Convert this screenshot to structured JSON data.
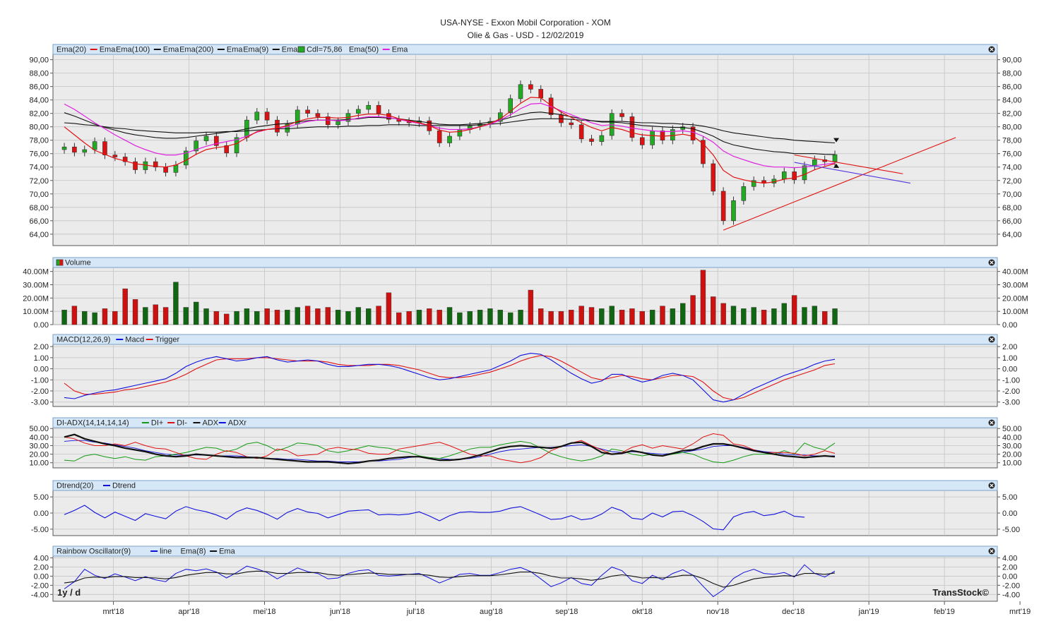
{
  "header": {
    "title": "USA-NYSE - Exxon Mobil Corporation - XOM",
    "subtitle": "Olie & Gas - USD - 12/02/2019"
  },
  "footer": {
    "period": "1y / d",
    "brand": "TransStock©"
  },
  "x_axis": {
    "labels": [
      "mrt'18",
      "apr'18",
      "mei'18",
      "jun'18",
      "jul'18",
      "aug'18",
      "sep'18",
      "okt'18",
      "nov'18",
      "dec'18",
      "jan'19",
      "feb'19",
      "mrt'19"
    ]
  },
  "colors": {
    "up": "#22aa22",
    "down": "#dd1111",
    "ema20": "#e01010",
    "ema100": "#111111",
    "ema200": "#111111",
    "ema9": "#111111",
    "ema50": "#e020e0",
    "macd": "#1010dd",
    "trigger": "#e01010",
    "di_plus": "#119911",
    "di_minus": "#e01010",
    "adx": "#111111",
    "adxr": "#1010dd",
    "panel_header": "#d6e8f8",
    "panel_bg": "#ebebeb"
  },
  "panels": [
    {
      "id": "price",
      "legend": [
        {
          "text": "Ema(20)",
          "color": ""
        },
        {
          "text": "Ema",
          "color": "#e01010"
        },
        {
          "text": "Ema(100)",
          "color": ""
        },
        {
          "text": "Ema",
          "color": "#111111"
        },
        {
          "text": "Ema(200)",
          "color": ""
        },
        {
          "text": "Ema",
          "color": "#111111"
        },
        {
          "text": "Ema(9)",
          "color": ""
        },
        {
          "text": "Ema",
          "color": "#111111"
        },
        {
          "text": "Cdl=75,86",
          "color": ""
        },
        {
          "text": "Ema(50)",
          "color": ""
        },
        {
          "text": "Ema",
          "color": "#e020e0"
        }
      ],
      "ticks": [
        "90,00",
        "88,00",
        "86,00",
        "84,00",
        "82,00",
        "80,00",
        "78,00",
        "76,00",
        "74,00",
        "72,00",
        "70,00",
        "68,00",
        "66,00",
        "64,00"
      ]
    },
    {
      "id": "volume",
      "legend": [
        {
          "text": "Volume",
          "color": ""
        }
      ],
      "ticks": [
        "40.00M",
        "30.00M",
        "20.00M",
        "10.00M",
        "0.00"
      ]
    },
    {
      "id": "macd",
      "legend": [
        {
          "text": "MACD(12,26,9)",
          "color": ""
        },
        {
          "text": "Macd",
          "color": "#1010dd"
        },
        {
          "text": "Trigger",
          "color": "#e01010"
        }
      ],
      "ticks": [
        "2.00",
        "1.00",
        "0.00",
        "-1.00",
        "-2.00",
        "-3.00"
      ]
    },
    {
      "id": "adx",
      "legend": [
        {
          "text": "DI-ADX(14,14,14,14)",
          "color": ""
        },
        {
          "text": "DI+",
          "color": "#119911"
        },
        {
          "text": "DI-",
          "color": "#e01010"
        },
        {
          "text": "ADX",
          "color": "#111111"
        },
        {
          "text": "ADXr",
          "color": "#1010dd"
        }
      ],
      "ticks": [
        "50.00",
        "40.00",
        "30.00",
        "20.00",
        "10.00"
      ]
    },
    {
      "id": "dtrend",
      "legend": [
        {
          "text": "Dtrend(20)",
          "color": ""
        },
        {
          "text": "Dtrend",
          "color": "#1010dd"
        }
      ],
      "ticks": [
        "5.00",
        "0.00",
        "-5.00"
      ]
    },
    {
      "id": "rainbow",
      "legend": [
        {
          "text": "Rainbow Oscillator(9)",
          "color": ""
        },
        {
          "text": "line",
          "color": "#1010dd"
        },
        {
          "text": "Ema(8)",
          "color": ""
        },
        {
          "text": "Ema",
          "color": "#111111"
        }
      ],
      "ticks": [
        "4.00",
        "2.00",
        "0.00",
        "-2.00",
        "-4.00"
      ]
    }
  ],
  "chart_data": {
    "type": "line",
    "title": "USA-NYSE - Exxon Mobil Corporation - XOM",
    "ticker": "XOM",
    "currency": "USD",
    "date": "12/02/2019",
    "x_range": [
      "2018-02",
      "2019-03"
    ],
    "months": [
      "mrt'18",
      "apr'18",
      "mei'18",
      "jun'18",
      "jul'18",
      "aug'18",
      "sep'18",
      "okt'18",
      "nov'18",
      "dec'18",
      "jan'19",
      "feb'19",
      "mrt'19"
    ],
    "close": [
      77.0,
      76.2,
      76.6,
      77.8,
      75.8,
      75.5,
      74.8,
      73.6,
      74.8,
      74.0,
      73.2,
      74.3,
      76.4,
      77.9,
      78.6,
      77.2,
      76.1,
      78.4,
      81.0,
      82.2,
      81.0,
      79.2,
      80.4,
      82.5,
      82.0,
      81.5,
      80.3,
      80.8,
      82.0,
      82.6,
      83.2,
      82.0,
      81.1,
      80.8,
      80.6,
      80.9,
      79.4,
      77.6,
      78.6,
      79.6,
      80.1,
      80.4,
      80.8,
      82.1,
      84.2,
      86.3,
      85.6,
      84.3,
      81.8,
      80.6,
      80.3,
      78.2,
      77.8,
      78.7,
      82.0,
      81.5,
      78.4,
      77.3,
      79.4,
      78.0,
      79.6,
      80.0,
      78.0,
      74.5,
      70.4,
      66.0,
      69.0,
      71.1,
      72.0,
      71.6,
      72.2,
      73.3,
      72.1,
      74.2,
      75.1,
      74.8,
      75.86
    ],
    "ohlc_summary": {
      "last_close": 75.86,
      "period_high": 87.4,
      "period_low": 64.65
    },
    "ema20": [
      80.0,
      78.8,
      77.6,
      76.5,
      75.9,
      75.3,
      74.9,
      74.5,
      74.3,
      74.1,
      74.0,
      74.3,
      75.0,
      75.9,
      76.6,
      76.9,
      77.1,
      77.5,
      78.4,
      79.3,
      79.6,
      79.8,
      80.2,
      80.8,
      81.2,
      81.4,
      81.4,
      81.3,
      81.4,
      81.7,
      81.9,
      81.9,
      81.7,
      81.2,
      80.9,
      80.6,
      80.2,
      79.5,
      79.2,
      79.3,
      79.6,
      80.0,
      80.5,
      81.2,
      82.3,
      83.5,
      84.4,
      84.3,
      83.2,
      82.2,
      81.4,
      80.6,
      79.9,
      79.4,
      79.9,
      79.6,
      79.1,
      78.8,
      78.7,
      78.6,
      78.7,
      78.9,
      78.6,
      77.5,
      75.8,
      73.5,
      72.5,
      72.1,
      71.8,
      71.6,
      71.8,
      72.2,
      72.4,
      72.9,
      73.6,
      74.1,
      74.5
    ],
    "ema50": [
      83.4,
      82.6,
      81.6,
      80.6,
      79.7,
      78.8,
      78.0,
      77.2,
      76.6,
      76.1,
      75.8,
      75.8,
      76.1,
      76.6,
      77.1,
      77.5,
      77.8,
      78.1,
      78.6,
      79.2,
      79.6,
      79.8,
      80.0,
      80.4,
      80.8,
      81.0,
      81.0,
      80.9,
      81.0,
      81.3,
      81.5,
      81.5,
      81.4,
      81.1,
      80.8,
      80.5,
      80.2,
      79.8,
      79.6,
      79.6,
      79.7,
      80.0,
      80.4,
      81.0,
      81.8,
      82.7,
      83.4,
      83.5,
      83.0,
      82.4,
      81.8,
      81.2,
      80.6,
      80.2,
      80.3,
      80.1,
      79.8,
      79.6,
      79.4,
      79.3,
      79.3,
      79.4,
      79.2,
      78.6,
      77.7,
      76.4,
      75.6,
      75.1,
      74.6,
      74.2,
      74.0,
      74.0,
      73.9,
      74.0,
      74.2,
      74.4,
      74.6
    ],
    "ema100": [
      82.1,
      81.6,
      81.0,
      80.4,
      79.9,
      79.5,
      79.1,
      78.8,
      78.6,
      78.4,
      78.3,
      78.3,
      78.4,
      78.6,
      78.8,
      79.0,
      79.2,
      79.4,
      79.7,
      80.0,
      80.2,
      80.4,
      80.5,
      80.7,
      80.9,
      81.0,
      81.0,
      81.0,
      81.1,
      81.2,
      81.4,
      81.4,
      81.3,
      81.2,
      81.0,
      80.8,
      80.6,
      80.4,
      80.3,
      80.3,
      80.4,
      80.5,
      80.7,
      81.0,
      81.4,
      81.8,
      82.1,
      82.2,
      82.0,
      81.8,
      81.5,
      81.2,
      80.9,
      80.7,
      80.7,
      80.6,
      80.4,
      80.2,
      80.1,
      80.0,
      79.9,
      79.9,
      79.7,
      79.2,
      78.6,
      77.8,
      77.3,
      77.0,
      76.7,
      76.5,
      76.3,
      76.2,
      76.0,
      76.0,
      76.0,
      75.9,
      75.86
    ],
    "ema200": [
      80.6,
      80.5,
      80.3,
      80.2,
      80.0,
      79.8,
      79.7,
      79.5,
      79.4,
      79.3,
      79.2,
      79.1,
      79.1,
      79.1,
      79.2,
      79.2,
      79.3,
      79.3,
      79.4,
      79.5,
      79.6,
      79.7,
      79.7,
      79.8,
      79.9,
      80.0,
      80.0,
      80.0,
      80.1,
      80.1,
      80.2,
      80.2,
      80.3,
      80.3,
      80.3,
      80.2,
      80.2,
      80.2,
      80.2,
      80.2,
      80.2,
      80.3,
      80.4,
      80.5,
      80.7,
      80.9,
      81.1,
      81.2,
      81.2,
      81.2,
      81.1,
      81.0,
      80.9,
      80.8,
      80.8,
      80.8,
      80.7,
      80.6,
      80.6,
      80.5,
      80.5,
      80.4,
      80.3,
      80.1,
      79.8,
      79.4,
      79.1,
      78.9,
      78.7,
      78.5,
      78.3,
      78.2,
      78.0,
      77.9,
      77.8,
      77.7,
      77.6
    ],
    "volume_m": [
      11,
      14,
      10,
      9,
      12,
      10,
      27,
      19,
      13,
      15,
      13,
      32,
      13,
      17,
      12,
      10,
      8,
      10,
      12,
      10,
      12,
      11,
      11,
      13,
      14,
      12,
      13,
      11,
      10,
      13,
      12,
      14,
      24,
      9,
      10,
      11,
      12,
      11,
      13,
      9,
      10,
      11,
      12,
      11,
      9,
      11,
      26,
      12,
      10,
      10,
      11,
      14,
      13,
      12,
      14,
      11,
      12,
      10,
      11,
      14,
      12,
      16,
      22,
      41,
      21,
      16,
      14,
      12,
      13,
      11,
      12,
      16,
      22,
      13,
      14,
      10,
      12
    ],
    "macd": [
      -2.6,
      -2.7,
      -2.4,
      -2.2,
      -2.0,
      -1.9,
      -1.7,
      -1.5,
      -1.3,
      -1.1,
      -0.9,
      -0.4,
      0.2,
      0.6,
      0.9,
      1.1,
      0.9,
      0.7,
      0.8,
      1.0,
      1.1,
      0.8,
      0.6,
      0.7,
      0.8,
      0.7,
      0.4,
      0.2,
      0.2,
      0.3,
      0.4,
      0.4,
      0.3,
      0.1,
      -0.2,
      -0.5,
      -0.8,
      -1.0,
      -0.9,
      -0.7,
      -0.5,
      -0.3,
      -0.1,
      0.3,
      0.7,
      1.2,
      1.4,
      1.3,
      0.8,
      0.2,
      -0.4,
      -0.9,
      -1.3,
      -1.1,
      -0.5,
      -0.5,
      -0.9,
      -1.2,
      -1.0,
      -0.6,
      -0.4,
      -0.6,
      -1.0,
      -1.9,
      -2.8,
      -3.0,
      -2.8,
      -2.3,
      -1.8,
      -1.4,
      -1.0,
      -0.6,
      -0.3,
      0.0,
      0.4,
      0.7,
      0.85
    ],
    "trigger": [
      -1.3,
      -2.0,
      -2.3,
      -2.3,
      -2.2,
      -2.1,
      -1.9,
      -1.8,
      -1.6,
      -1.4,
      -1.2,
      -0.9,
      -0.5,
      0.0,
      0.4,
      0.8,
      0.9,
      0.9,
      0.9,
      1.0,
      1.0,
      0.9,
      0.8,
      0.7,
      0.7,
      0.7,
      0.6,
      0.4,
      0.3,
      0.3,
      0.3,
      0.4,
      0.4,
      0.3,
      0.1,
      -0.1,
      -0.4,
      -0.7,
      -0.8,
      -0.8,
      -0.7,
      -0.5,
      -0.3,
      0.0,
      0.3,
      0.7,
      1.0,
      1.2,
      1.1,
      0.7,
      0.2,
      -0.3,
      -0.8,
      -1.0,
      -0.8,
      -0.6,
      -0.7,
      -0.9,
      -1.0,
      -0.8,
      -0.6,
      -0.6,
      -0.7,
      -1.2,
      -2.0,
      -2.6,
      -2.8,
      -2.6,
      -2.2,
      -1.8,
      -1.4,
      -1.0,
      -0.7,
      -0.4,
      -0.1,
      0.3,
      0.45
    ],
    "di_plus": [
      13,
      12,
      18,
      20,
      17,
      15,
      17,
      14,
      13,
      17,
      18,
      20,
      22,
      25,
      28,
      27,
      23,
      26,
      32,
      34,
      30,
      24,
      28,
      33,
      32,
      30,
      24,
      22,
      24,
      27,
      30,
      28,
      27,
      24,
      22,
      18,
      16,
      15,
      18,
      22,
      26,
      28,
      28,
      31,
      33,
      35,
      33,
      27,
      21,
      17,
      14,
      12,
      14,
      18,
      26,
      24,
      20,
      18,
      20,
      18,
      20,
      22,
      20,
      15,
      11,
      10,
      13,
      17,
      20,
      20,
      20,
      24,
      20,
      33,
      28,
      25,
      33
    ],
    "di_minus": [
      40,
      38,
      33,
      30,
      30,
      32,
      30,
      34,
      30,
      27,
      26,
      22,
      18,
      15,
      14,
      20,
      24,
      22,
      17,
      15,
      18,
      26,
      24,
      18,
      19,
      20,
      26,
      28,
      26,
      25,
      21,
      20,
      20,
      26,
      28,
      30,
      32,
      34,
      30,
      25,
      20,
      18,
      18,
      14,
      12,
      10,
      12,
      16,
      24,
      29,
      33,
      36,
      30,
      25,
      20,
      22,
      28,
      31,
      27,
      30,
      28,
      26,
      32,
      40,
      44,
      42,
      32,
      30,
      25,
      22,
      22,
      22,
      21,
      18,
      20,
      24,
      21
    ],
    "adx": [
      40,
      43,
      38,
      35,
      32,
      30,
      27,
      25,
      23,
      20,
      18,
      17,
      18,
      20,
      19,
      18,
      17,
      16,
      16,
      16,
      15,
      14,
      13,
      12,
      11,
      11,
      11,
      10,
      9,
      10,
      12,
      13,
      15,
      16,
      17,
      17,
      15,
      13,
      13,
      14,
      16,
      19,
      23,
      27,
      29,
      30,
      29,
      28,
      27,
      29,
      33,
      34,
      29,
      22,
      20,
      21,
      24,
      22,
      19,
      18,
      21,
      24,
      25,
      29,
      32,
      32,
      30,
      27,
      24,
      22,
      20,
      18,
      17,
      16,
      17,
      18,
      17
    ],
    "adxr": [
      35,
      36,
      36,
      34,
      33,
      31,
      29,
      27,
      24,
      22,
      20,
      19,
      19,
      19,
      19,
      18,
      18,
      18,
      17,
      16,
      15,
      15,
      14,
      14,
      13,
      12,
      12,
      11,
      11,
      11,
      12,
      12,
      13,
      14,
      16,
      17,
      16,
      15,
      14,
      14,
      15,
      17,
      20,
      23,
      25,
      26,
      27,
      28,
      28,
      29,
      30,
      31,
      29,
      26,
      23,
      22,
      23,
      22,
      21,
      20,
      21,
      22,
      24,
      26,
      29,
      30,
      30,
      28,
      25,
      23,
      22,
      20,
      19,
      19,
      18,
      18,
      18
    ],
    "dtrend": [
      -0.5,
      0.8,
      2.4,
      0.2,
      -1.5,
      0.3,
      -1.0,
      -2.3,
      -0.2,
      -1.0,
      -1.8,
      0.6,
      2.0,
      1.0,
      0.4,
      -0.6,
      -1.9,
      0.4,
      1.6,
      0.8,
      -0.4,
      -1.9,
      0.2,
      1.4,
      0.3,
      -0.1,
      -1.5,
      -0.5,
      0.6,
      0.8,
      1.0,
      -0.6,
      -0.4,
      -0.6,
      -0.3,
      0.4,
      -0.9,
      -2.4,
      -0.8,
      0.2,
      0.4,
      0.2,
      0.2,
      0.6,
      1.5,
      2.0,
      0.7,
      -0.6,
      -2.0,
      -1.8,
      -0.8,
      -2.1,
      -1.7,
      -0.3,
      1.8,
      0.7,
      -1.6,
      -2.0,
      0.0,
      -1.2,
      0.4,
      0.6,
      -0.8,
      -2.6,
      -4.9,
      -5.2,
      -1.2,
      0.0,
      0.5,
      -0.8,
      -0.4,
      0.6,
      -1.0,
      -1.3,
      null,
      null,
      null
    ],
    "rainbow_line": [
      -2.8,
      -1.2,
      1.5,
      0.2,
      -0.5,
      0.5,
      -0.2,
      -1.0,
      -0.1,
      -0.8,
      -1.2,
      0.6,
      1.5,
      1.2,
      1.6,
      0.9,
      -0.4,
      0.8,
      2.2,
      1.6,
      0.8,
      -0.6,
      0.6,
      1.8,
      1.0,
      0.6,
      -0.6,
      -0.4,
      0.6,
      1.2,
      1.4,
      0.2,
      0.0,
      0.2,
      0.4,
      0.6,
      -0.4,
      -1.5,
      -0.6,
      0.4,
      0.6,
      0.2,
      0.2,
      0.8,
      1.5,
      1.9,
      1.0,
      -0.6,
      -2.3,
      -1.5,
      -0.3,
      -1.6,
      -2.0,
      0.2,
      2.0,
      1.2,
      -1.0,
      -1.6,
      0.2,
      -0.8,
      0.6,
      1.4,
      0.2,
      -2.2,
      -4.5,
      -3.0,
      -0.5,
      0.8,
      1.5,
      0.6,
      0.4,
      0.8,
      -0.2,
      2.5,
      0.6,
      -0.2,
      1.1
    ],
    "rainbow_ema": [
      -1.5,
      -1.2,
      -0.4,
      -0.2,
      -0.3,
      -0.1,
      -0.1,
      -0.3,
      -0.3,
      -0.4,
      -0.6,
      -0.3,
      0.2,
      0.5,
      0.8,
      0.8,
      0.5,
      0.5,
      0.9,
      1.1,
      1.0,
      0.6,
      0.6,
      0.8,
      0.8,
      0.8,
      0.4,
      0.2,
      0.3,
      0.5,
      0.7,
      0.6,
      0.4,
      0.4,
      0.4,
      0.4,
      0.2,
      -0.2,
      -0.3,
      -0.1,
      0.1,
      0.1,
      0.1,
      0.3,
      0.6,
      0.9,
      0.9,
      0.6,
      0.0,
      -0.4,
      -0.4,
      -0.6,
      -0.9,
      -0.6,
      0.0,
      0.3,
      0.0,
      -0.4,
      -0.3,
      -0.4,
      -0.2,
      0.2,
      0.2,
      -0.5,
      -1.6,
      -2.4,
      -2.0,
      -1.3,
      -0.6,
      -0.3,
      -0.1,
      0.1,
      0.0,
      0.6,
      0.6,
      0.4,
      0.7
    ]
  }
}
